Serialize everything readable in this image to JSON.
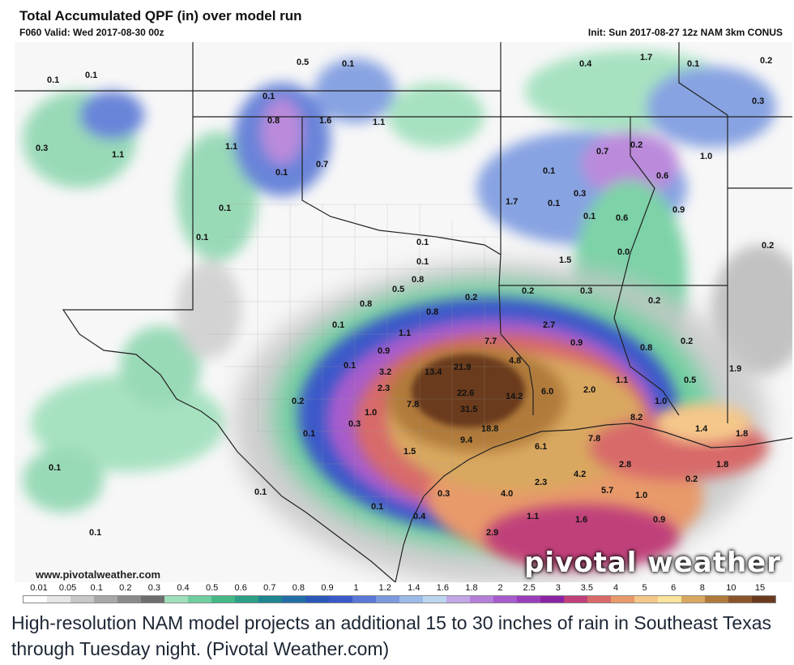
{
  "header": {
    "title": "Total Accumulated QPF (in) over model run",
    "valid": "F060 Valid: Wed 2017-08-30 00z",
    "init": "Init: Sun 2017-08-27 12z NAM 3km CONUS"
  },
  "map": {
    "watermark_url": "www.pivotalweather.com",
    "logo": "pivotal weather",
    "value_labels": [
      "0.1",
      "0.1",
      "0.5",
      "0.1",
      "0.4",
      "1.7",
      "0.1",
      "0.2",
      "0.3",
      "0.1",
      "0.8",
      "1.6",
      "1.1",
      "0.3",
      "1.1",
      "1.1",
      "0.1",
      "0.7",
      "0.7",
      "0.2",
      "1.0",
      "0.1",
      "0.6",
      "0.1",
      "0.3",
      "1.7",
      "0.1",
      "0.1",
      "0.6",
      "0.9",
      "0.2",
      "0.1",
      "0.1",
      "0.1",
      "1.5",
      "0.0",
      "0.5",
      "0.8",
      "0.2",
      "0.2",
      "0.3",
      "0.8",
      "0.8",
      "0.2",
      "2.7",
      "0.9",
      "0.1",
      "1.1",
      "7.7",
      "0.8",
      "0.2",
      "0.9",
      "4.8",
      "0.1",
      "3.2",
      "13.4",
      "21.9",
      "1.1",
      "0.5",
      "2.3",
      "6.0",
      "2.0",
      "1.0",
      "1.9",
      "7.8",
      "22.6",
      "14.2",
      "8.2",
      "0.2",
      "1.0",
      "31.5",
      "0.3",
      "18.8",
      "0.1",
      "9.4",
      "6.1",
      "7.8",
      "1.4",
      "1.8",
      "0.1",
      "1.5",
      "2.8",
      "1.8",
      "4.2",
      "0.2",
      "0.1",
      "0.3",
      "2.3",
      "5.7",
      "1.0",
      "0.1",
      "0.4",
      "4.0",
      "1.1",
      "1.6",
      "0.9",
      "2.9",
      "0.1"
    ]
  },
  "legend": {
    "ticks": [
      "0.01",
      "0.05",
      "0.1",
      "0.2",
      "0.3",
      "0.4",
      "0.5",
      "0.6",
      "0.7",
      "0.8",
      "0.9",
      "1",
      "1.2",
      "1.4",
      "1.6",
      "1.8",
      "2",
      "2.5",
      "3",
      "3.5",
      "4",
      "5",
      "6",
      "8",
      "10",
      "15"
    ],
    "colors": [
      "#ffffff",
      "#e6e6e6",
      "#c8c8c8",
      "#a8a8a8",
      "#8a8a8a",
      "#6e6e6e",
      "#9fe0bb",
      "#6fcf9f",
      "#45b887",
      "#2c9f86",
      "#1f8591",
      "#236ea7",
      "#2a58b8",
      "#3b59c9",
      "#5a78d6",
      "#7b9ae0",
      "#9cbbe9",
      "#bdd6f0",
      "#c2a6e6",
      "#b57fd9",
      "#a75bcc",
      "#9a3dbd",
      "#8a23a6",
      "#c0407a",
      "#d86a6a",
      "#e89a6a",
      "#f5c88a",
      "#f8e49a",
      "#d9a860",
      "#b07a3a",
      "#8a552a",
      "#6a3a1f"
    ]
  },
  "caption": "High-resolution NAM model projects an additional 15 to 30 inches of rain in Southeast Texas through Tuesday night. (Pivotal Weather.com)"
}
